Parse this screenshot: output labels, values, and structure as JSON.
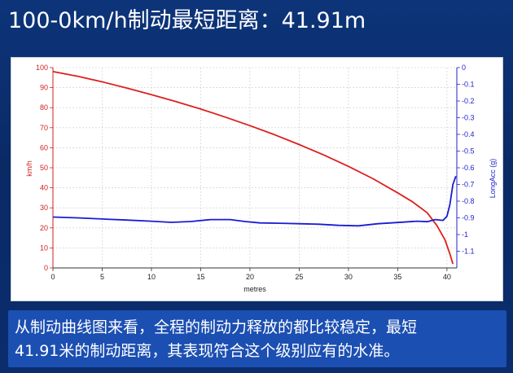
{
  "header": {
    "title": "100-0km/h制动最短距离：41.91m"
  },
  "caption": {
    "line1": "从制动曲线图来看，全程的制动力释放的都比较稳定，最短",
    "line2": "41.91米的制动距离，其表现符合这个级别应有的水准。"
  },
  "chart_data": {
    "type": "line",
    "xlabel": "metres",
    "ylabel_left": "km/h",
    "ylabel_right": "LongAcc (g)",
    "xlim": [
      0,
      41
    ],
    "ylim_left": [
      0,
      100
    ],
    "ylim_right": [
      -1.2,
      0
    ],
    "x_ticks": [
      0,
      5,
      10,
      15,
      20,
      25,
      30,
      35,
      40
    ],
    "y_left_ticks": [
      0,
      10,
      20,
      30,
      40,
      50,
      60,
      70,
      80,
      90,
      100
    ],
    "y_right_ticks": [
      0,
      -0.1,
      -0.2,
      -0.3,
      -0.4,
      -0.5,
      -0.6,
      -0.7,
      -0.8,
      -0.9,
      -1,
      -1.1
    ],
    "y_right_labels": [
      "0",
      "-0.1",
      "-0.2",
      "-0.3",
      "-0.4",
      "-0.5",
      "-0.6",
      "-0.7",
      "-0.8",
      "-0.9",
      "-1",
      "-1.1"
    ],
    "grid": true,
    "colors": {
      "speed": "#dd1f1f",
      "accel": "#1a1ad6",
      "grid": "#c8c8c8",
      "left_axis": "#cc2222",
      "right_axis": "#2222cc"
    },
    "series": [
      {
        "axis": "left",
        "x": [
          0,
          2.5,
          5,
          7.5,
          10,
          12.5,
          15,
          17.5,
          20,
          22.5,
          25,
          27.5,
          30,
          32.5,
          35,
          36.5,
          38,
          39,
          39.8,
          40.3,
          40.6
        ],
        "y": [
          98,
          95.7,
          92.9,
          89.8,
          86.5,
          83,
          79.3,
          75.3,
          71,
          66.5,
          61.6,
          56.4,
          50.7,
          44.5,
          37.5,
          33,
          27.5,
          21,
          14,
          7,
          2
        ]
      },
      {
        "axis": "right",
        "x": [
          0,
          2.5,
          5,
          7.5,
          10,
          12,
          14,
          16,
          18,
          19.5,
          21,
          23,
          25,
          27,
          29,
          31,
          33,
          35,
          37,
          38,
          38.8,
          39.6,
          40,
          40.3,
          40.6,
          40.9
        ],
        "y": [
          -0.895,
          -0.9,
          -0.907,
          -0.913,
          -0.92,
          -0.927,
          -0.922,
          -0.91,
          -0.91,
          -0.922,
          -0.93,
          -0.932,
          -0.935,
          -0.938,
          -0.945,
          -0.948,
          -0.935,
          -0.928,
          -0.92,
          -0.923,
          -0.91,
          -0.915,
          -0.89,
          -0.82,
          -0.7,
          -0.65
        ]
      }
    ]
  }
}
